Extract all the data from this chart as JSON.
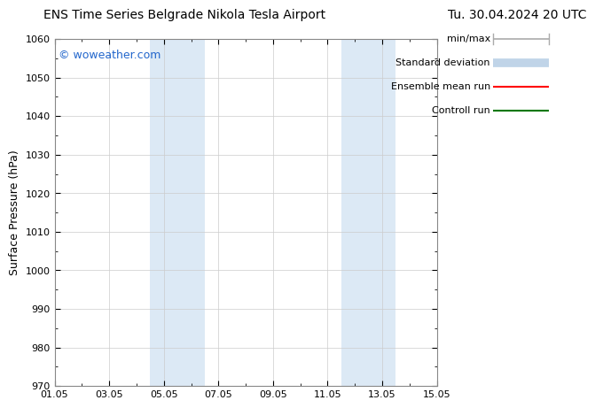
{
  "title_left": "ENS Time Series Belgrade Nikola Tesla Airport",
  "title_right": "Tu. 30.04.2024 20 UTC",
  "ylabel": "Surface Pressure (hPa)",
  "ylim": [
    970,
    1060
  ],
  "yticks": [
    970,
    980,
    990,
    1000,
    1010,
    1020,
    1030,
    1040,
    1050,
    1060
  ],
  "xlim_start": 0,
  "xlim_end": 14,
  "xtick_labels": [
    "01.05",
    "03.05",
    "05.05",
    "07.05",
    "09.05",
    "11.05",
    "13.05",
    "15.05"
  ],
  "xtick_positions": [
    0,
    2,
    4,
    6,
    8,
    10,
    12,
    14
  ],
  "shaded_bands": [
    {
      "x_start": 3.5,
      "x_end": 5.5
    },
    {
      "x_start": 10.5,
      "x_end": 12.5
    }
  ],
  "shaded_color": "#dce9f5",
  "watermark_text": "© woweather.com",
  "watermark_color": "#2266cc",
  "legend_items": [
    {
      "label": "min/max",
      "color": "#aaaaaa",
      "lw": 1.2
    },
    {
      "label": "Standard deviation",
      "color": "#c0d4e8",
      "lw": 7
    },
    {
      "label": "Ensemble mean run",
      "color": "#ff0000",
      "lw": 1.5
    },
    {
      "label": "Controll run",
      "color": "#007700",
      "lw": 1.5
    }
  ],
  "bg_color": "#ffffff",
  "grid_color": "#cccccc",
  "title_fontsize": 10,
  "ylabel_fontsize": 9,
  "tick_fontsize": 8,
  "legend_fontsize": 8,
  "watermark_fontsize": 9
}
